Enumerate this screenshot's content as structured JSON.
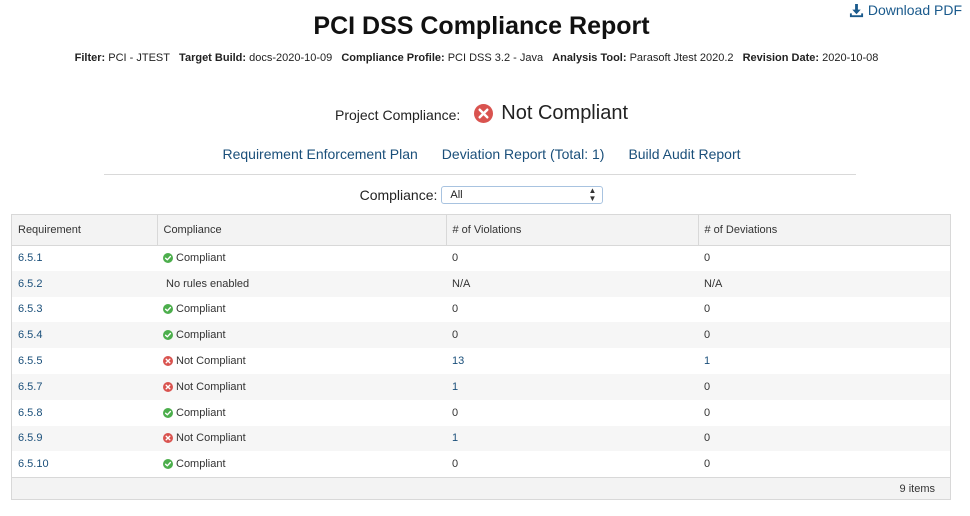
{
  "header": {
    "download_label": "Download PDF",
    "title": "PCI DSS Compliance Report"
  },
  "filters": [
    {
      "label": "Filter:",
      "value": "PCI - JTEST"
    },
    {
      "label": "Target Build:",
      "value": "docs-2020-10-09"
    },
    {
      "label": "Compliance Profile:",
      "value": "PCI DSS 3.2 - Java"
    },
    {
      "label": "Analysis Tool:",
      "value": "Parasoft Jtest 2020.2"
    },
    {
      "label": "Revision Date:",
      "value": "2020-10-08"
    }
  ],
  "project": {
    "label": "Project Compliance:",
    "status": "Not Compliant"
  },
  "links": {
    "enforcement": "Requirement Enforcement Plan",
    "deviation": "Deviation Report (Total: 1)",
    "audit": "Build Audit Report"
  },
  "compliance_filter": {
    "label": "Compliance:",
    "selected": "All"
  },
  "table": {
    "headers": [
      "Requirement",
      "Compliance",
      "# of Violations",
      "# of Deviations"
    ],
    "rows": [
      {
        "req": "6.5.1",
        "status": "Compliant",
        "violations": "0",
        "deviations": "0"
      },
      {
        "req": "6.5.2",
        "status": "No rules enabled",
        "violations": "N/A",
        "deviations": "N/A"
      },
      {
        "req": "6.5.3",
        "status": "Compliant",
        "violations": "0",
        "deviations": "0"
      },
      {
        "req": "6.5.4",
        "status": "Compliant",
        "violations": "0",
        "deviations": "0"
      },
      {
        "req": "6.5.5",
        "status": "Not Compliant",
        "violations": "13",
        "deviations": "1"
      },
      {
        "req": "6.5.7",
        "status": "Not Compliant",
        "violations": "1",
        "deviations": "0"
      },
      {
        "req": "6.5.8",
        "status": "Compliant",
        "violations": "0",
        "deviations": "0"
      },
      {
        "req": "6.5.9",
        "status": "Not Compliant",
        "violations": "1",
        "deviations": "0"
      },
      {
        "req": "6.5.10",
        "status": "Compliant",
        "violations": "0",
        "deviations": "0"
      }
    ],
    "footer": "9 items"
  },
  "colors": {
    "link": "#1a4f7a",
    "compliant": "#4cae4c",
    "not_compliant": "#d9534f"
  },
  "icons": {
    "download": "download-icon",
    "compliant": "check-circle-icon",
    "not_compliant": "x-circle-icon"
  }
}
